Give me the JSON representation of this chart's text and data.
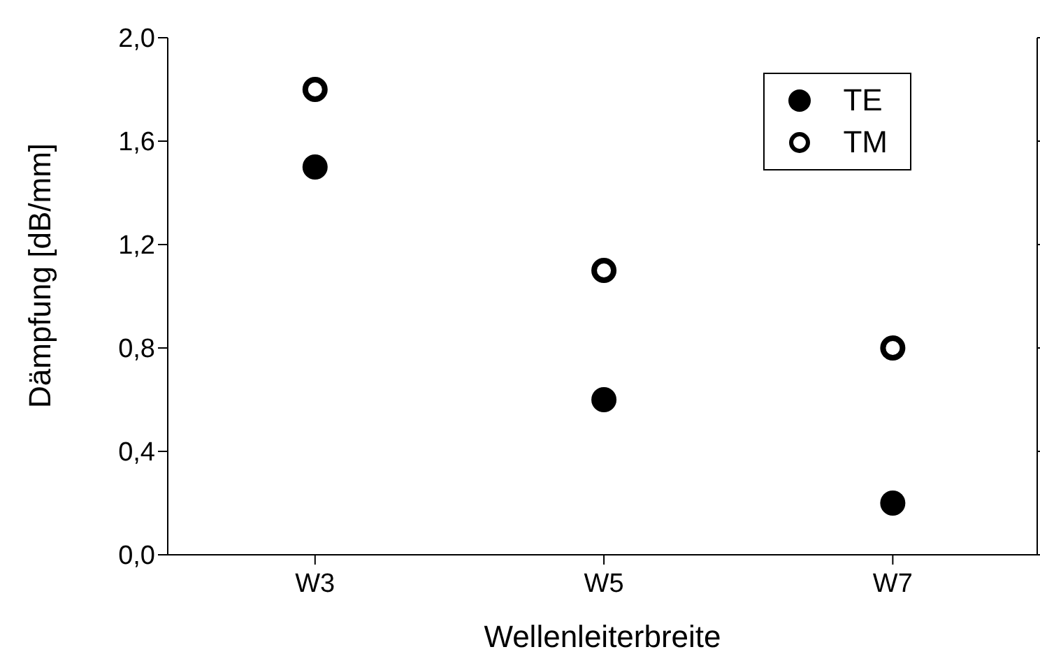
{
  "chart_data": {
    "type": "scatter",
    "xlabel": "Wellenleiterbreite",
    "ylabel": "Dämpfung [dB/mm]",
    "categories": [
      "W3",
      "W5",
      "W7"
    ],
    "series": [
      {
        "name": "TE",
        "color": "#000000",
        "values": [
          1.5,
          0.6,
          0.2
        ]
      },
      {
        "name": "TM",
        "color": "#000000",
        "values": [
          1.8,
          1.1,
          0.8
        ]
      }
    ],
    "ylim": [
      0,
      2
    ],
    "yticks": [
      {
        "value": 0,
        "label": "0,0"
      },
      {
        "value": 0.4,
        "label": "0,4"
      },
      {
        "value": 0.8,
        "label": "0,8"
      },
      {
        "value": 1.2,
        "label": "1,2"
      },
      {
        "value": 1.6,
        "label": "1,6"
      },
      {
        "value": 2,
        "label": "2,0"
      }
    ],
    "grid": false,
    "legend": "top right",
    "marker": "circle"
  }
}
